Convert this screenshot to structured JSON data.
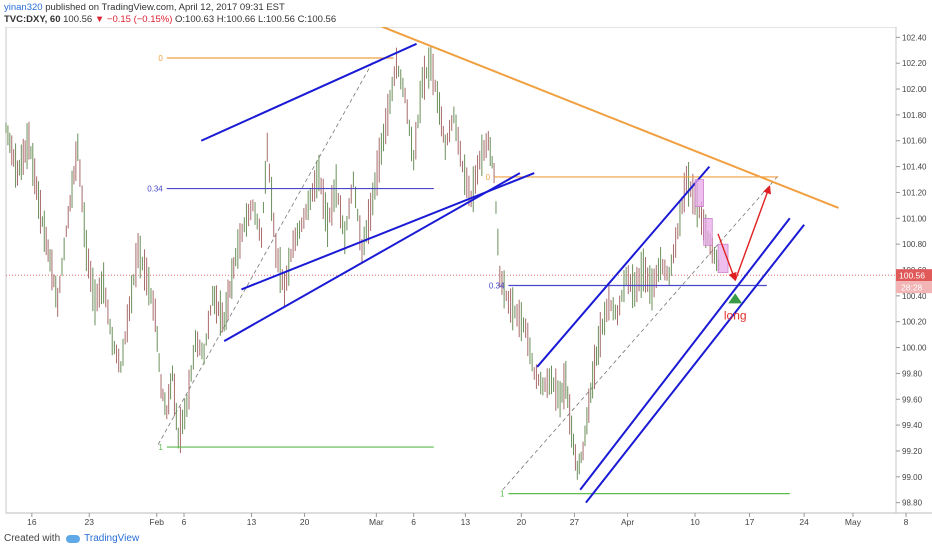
{
  "header": {
    "author": "yinan320",
    "published_text": "published on TradingView.com, April 12, 2017 09:31 EST",
    "symbol": "TVC:DXY, 60",
    "last": "100.56",
    "change": "−0.15 (−0.15%)",
    "ohlc": "O:100.63  H:100.66  L:100.56  C:100.56"
  },
  "footer": {
    "created_with": "Created with",
    "brand": "TradingView"
  },
  "colors": {
    "channel": "#1a1ad6",
    "trendline": "#f0a040",
    "fib_top": "#f0a040",
    "fib_mid": "#4848c8",
    "fib_bottom": "#5bbd4e",
    "arrow": "#e02020",
    "price_tag": "#e05a5a",
    "box": "#e8a8e8"
  },
  "chart_data": {
    "type": "line",
    "title": "",
    "xlabel": "",
    "ylabel": "",
    "ylim": [
      98.72,
      102.48
    ],
    "xlim": [
      0,
      31
    ],
    "yticks": [
      "102.40",
      "102.20",
      "102.00",
      "101.80",
      "101.60",
      "101.40",
      "101.20",
      "101.00",
      "100.80",
      "100.60",
      "100.40",
      "100.20",
      "100.00",
      "99.80",
      "99.60",
      "99.40",
      "99.20",
      "99.00",
      "98.80"
    ],
    "xticks": [
      {
        "label": "16",
        "x": 0.9
      },
      {
        "label": "23",
        "x": 2.9
      },
      {
        "label": "Feb",
        "x": 5.25
      },
      {
        "label": "6",
        "x": 6.2
      },
      {
        "label": "13",
        "x": 8.55
      },
      {
        "label": "20",
        "x": 10.4
      },
      {
        "label": "Mar",
        "x": 12.9
      },
      {
        "label": "6",
        "x": 14.2
      },
      {
        "label": "13",
        "x": 16.0
      },
      {
        "label": "20",
        "x": 17.95
      },
      {
        "label": "27",
        "x": 19.8
      },
      {
        "label": "Apr",
        "x": 21.65
      },
      {
        "label": "10",
        "x": 24.0
      },
      {
        "label": "17",
        "x": 25.9
      },
      {
        "label": "24",
        "x": 27.8
      },
      {
        "label": "May",
        "x": 29.5
      },
      {
        "label": "8",
        "x": 31.35
      }
    ],
    "current_price": "100.56",
    "countdown": "28:28",
    "price_series": [
      [
        0.0,
        101.7
      ],
      [
        0.4,
        101.35
      ],
      [
        0.8,
        101.6
      ],
      [
        1.2,
        101.05
      ],
      [
        1.6,
        100.6
      ],
      [
        1.8,
        100.35
      ],
      [
        2.1,
        100.9
      ],
      [
        2.5,
        101.55
      ],
      [
        2.8,
        100.75
      ],
      [
        3.1,
        100.35
      ],
      [
        3.4,
        100.5
      ],
      [
        3.7,
        100.05
      ],
      [
        4.0,
        99.85
      ],
      [
        4.3,
        100.3
      ],
      [
        4.6,
        100.75
      ],
      [
        4.9,
        100.55
      ],
      [
        5.2,
        100.25
      ],
      [
        5.4,
        99.7
      ],
      [
        5.6,
        99.5
      ],
      [
        5.8,
        99.8
      ],
      [
        6.0,
        99.3
      ],
      [
        6.3,
        99.55
      ],
      [
        6.6,
        100.05
      ],
      [
        6.9,
        99.95
      ],
      [
        7.2,
        100.4
      ],
      [
        7.6,
        100.2
      ],
      [
        8.0,
        100.7
      ],
      [
        8.3,
        100.95
      ],
      [
        8.6,
        101.1
      ],
      [
        8.9,
        100.85
      ],
      [
        9.1,
        101.55
      ],
      [
        9.4,
        100.75
      ],
      [
        9.7,
        100.45
      ],
      [
        10.0,
        100.8
      ],
      [
        10.3,
        100.95
      ],
      [
        10.6,
        101.15
      ],
      [
        10.9,
        101.35
      ],
      [
        11.2,
        100.95
      ],
      [
        11.5,
        101.25
      ],
      [
        11.8,
        100.85
      ],
      [
        12.1,
        101.3
      ],
      [
        12.4,
        100.75
      ],
      [
        12.7,
        101.05
      ],
      [
        13.0,
        101.45
      ],
      [
        13.3,
        101.8
      ],
      [
        13.6,
        102.2
      ],
      [
        13.9,
        101.95
      ],
      [
        14.2,
        101.45
      ],
      [
        14.5,
        102.05
      ],
      [
        14.8,
        102.2
      ],
      [
        15.1,
        101.85
      ],
      [
        15.3,
        101.55
      ],
      [
        15.6,
        101.8
      ],
      [
        15.9,
        101.4
      ],
      [
        16.2,
        101.15
      ],
      [
        16.5,
        101.45
      ],
      [
        16.8,
        101.6
      ],
      [
        17.0,
        101.35
      ],
      [
        17.2,
        100.55
      ],
      [
        17.5,
        100.35
      ],
      [
        17.8,
        100.25
      ],
      [
        18.1,
        100.15
      ],
      [
        18.4,
        99.8
      ],
      [
        18.7,
        99.7
      ],
      [
        19.0,
        99.75
      ],
      [
        19.3,
        99.6
      ],
      [
        19.5,
        99.75
      ],
      [
        19.7,
        99.35
      ],
      [
        19.9,
        99.05
      ],
      [
        20.1,
        99.2
      ],
      [
        20.3,
        99.55
      ],
      [
        20.5,
        99.85
      ],
      [
        20.7,
        100.1
      ],
      [
        21.0,
        100.35
      ],
      [
        21.3,
        100.25
      ],
      [
        21.6,
        100.55
      ],
      [
        21.9,
        100.45
      ],
      [
        22.2,
        100.6
      ],
      [
        22.5,
        100.45
      ],
      [
        22.8,
        100.65
      ],
      [
        23.1,
        100.55
      ],
      [
        23.4,
        100.9
      ],
      [
        23.7,
        101.3
      ],
      [
        24.0,
        101.15
      ],
      [
        24.3,
        100.95
      ],
      [
        24.6,
        100.75
      ],
      [
        24.9,
        100.6
      ]
    ],
    "channels": [
      {
        "name": "channel-upper-1",
        "from": [
          6.8,
          101.6
        ],
        "to": [
          14.3,
          102.35
        ]
      },
      {
        "name": "channel-lower-1a",
        "from": [
          7.6,
          100.05
        ],
        "to": [
          17.9,
          101.35
        ]
      },
      {
        "name": "channel-lower-1b",
        "from": [
          8.2,
          100.45
        ],
        "to": [
          18.4,
          101.35
        ]
      },
      {
        "name": "channel-upper-2",
        "from": [
          18.5,
          99.85
        ],
        "to": [
          24.5,
          101.4
        ]
      },
      {
        "name": "channel-lower-2a",
        "from": [
          20.0,
          98.9
        ],
        "to": [
          27.3,
          101.0
        ]
      },
      {
        "name": "channel-lower-2b",
        "from": [
          20.2,
          98.8
        ],
        "to": [
          27.8,
          100.95
        ]
      }
    ],
    "trendline": {
      "from": [
        12.9,
        102.5
      ],
      "to": [
        29.0,
        101.08
      ]
    },
    "midlines": [
      {
        "from": [
          5.3,
          99.25
        ],
        "to": [
          12.8,
          102.22
        ]
      },
      {
        "from": [
          17.3,
          98.9
        ],
        "to": [
          26.9,
          101.33
        ]
      }
    ],
    "fib_levels": [
      {
        "label": "0",
        "y": 102.24,
        "x1": 5.6,
        "x2": 13.5,
        "color_key": "fib_top"
      },
      {
        "label": "0.34",
        "y": 101.23,
        "x1": 5.6,
        "x2": 14.9,
        "color_key": "fib_mid"
      },
      {
        "label": "1",
        "y": 99.23,
        "x1": 5.6,
        "x2": 14.9,
        "color_key": "fib_bottom"
      },
      {
        "label": "0",
        "y": 101.32,
        "x1": 17.0,
        "x2": 26.9,
        "color_key": "fib_top"
      },
      {
        "label": "0.34",
        "y": 100.48,
        "x1": 17.5,
        "x2": 26.5,
        "color_key": "fib_mid"
      },
      {
        "label": "1",
        "y": 98.87,
        "x1": 17.5,
        "x2": 27.3,
        "color_key": "fib_bottom"
      }
    ],
    "pattern_boxes": [
      {
        "x1": 24.0,
        "x2": 24.3,
        "y1": 101.3,
        "y2": 101.09
      },
      {
        "x1": 24.3,
        "x2": 24.6,
        "y1": 101.0,
        "y2": 100.79
      },
      {
        "x1": 24.8,
        "x2": 25.15,
        "y1": 100.8,
        "y2": 100.58
      }
    ],
    "arrows": [
      {
        "from": [
          24.8,
          100.88
        ],
        "to": [
          25.4,
          100.52
        ]
      },
      {
        "from": [
          25.4,
          100.52
        ],
        "to": [
          26.6,
          101.25
        ]
      }
    ],
    "annotations": [
      {
        "text": "long",
        "x": 25.4,
        "y": 100.28
      }
    ],
    "current_price_value": 100.56
  }
}
